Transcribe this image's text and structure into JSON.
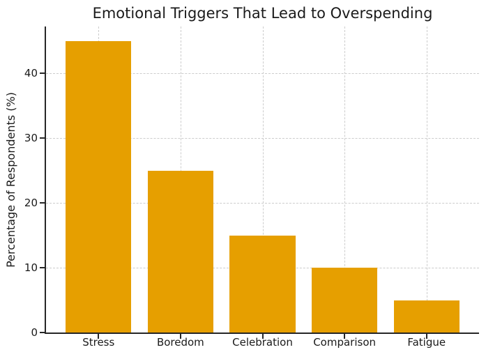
{
  "chart_data": {
    "type": "bar",
    "title": "Emotional Triggers That Lead to Overspending",
    "categories": [
      "Stress",
      "Boredom",
      "Celebration",
      "Comparison",
      "Fatigue"
    ],
    "values": [
      45,
      25,
      15,
      10,
      5
    ],
    "xlabel": "",
    "ylabel": "Percentage of Respondents (%)",
    "ylim": [
      0,
      47.25
    ],
    "yticks": [
      0,
      10,
      20,
      30,
      40
    ],
    "grid": "both-dashed",
    "legend": "none",
    "colors": {
      "bar": "#E69F00",
      "axis": "#262626",
      "grid": "#cccccc",
      "text": "#1a1a1a",
      "background": "#ffffff"
    }
  }
}
